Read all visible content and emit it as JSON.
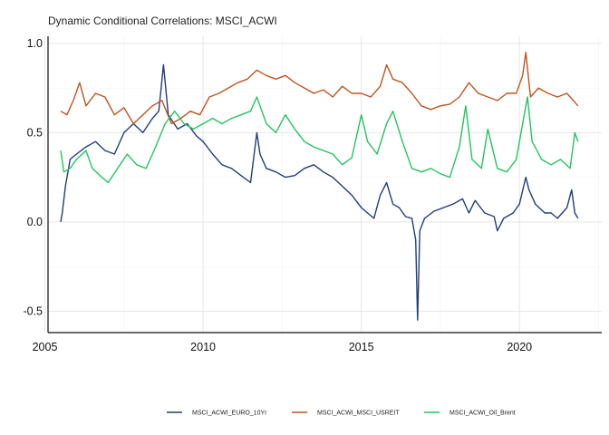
{
  "chart_data": {
    "type": "line",
    "title": "Dynamic Conditional Correlations: MSCI_ACWI",
    "xlabel": "",
    "ylabel": "",
    "xlim": [
      2005.1,
      2022.6
    ],
    "ylim": [
      -0.62,
      1.04
    ],
    "x_ticks": [
      2005,
      2010,
      2015,
      2020
    ],
    "x_tick_labels": [
      "2005",
      "2010",
      "2015",
      "2020"
    ],
    "y_ticks": [
      -0.5,
      0.0,
      0.5,
      1.0
    ],
    "y_tick_labels": [
      "-0.5",
      "0.0",
      "0.5",
      "1.0"
    ],
    "grid": true,
    "legend_position": "bottom",
    "series": [
      {
        "name": "MSCI_ACWI_EURO_10Yr",
        "color": "#1f3f7a",
        "points": [
          [
            2005.5,
            0.0
          ],
          [
            2005.55,
            0.05
          ],
          [
            2005.65,
            0.2
          ],
          [
            2005.8,
            0.35
          ],
          [
            2006.0,
            0.38
          ],
          [
            2006.3,
            0.42
          ],
          [
            2006.6,
            0.45
          ],
          [
            2006.9,
            0.4
          ],
          [
            2007.2,
            0.38
          ],
          [
            2007.5,
            0.5
          ],
          [
            2007.8,
            0.55
          ],
          [
            2008.1,
            0.5
          ],
          [
            2008.4,
            0.58
          ],
          [
            2008.6,
            0.62
          ],
          [
            2008.75,
            0.88
          ],
          [
            2008.9,
            0.6
          ],
          [
            2009.2,
            0.52
          ],
          [
            2009.5,
            0.55
          ],
          [
            2009.8,
            0.48
          ],
          [
            2010.0,
            0.45
          ],
          [
            2010.3,
            0.38
          ],
          [
            2010.6,
            0.32
          ],
          [
            2010.9,
            0.3
          ],
          [
            2011.2,
            0.26
          ],
          [
            2011.5,
            0.22
          ],
          [
            2011.7,
            0.5
          ],
          [
            2011.8,
            0.38
          ],
          [
            2012.0,
            0.3
          ],
          [
            2012.3,
            0.28
          ],
          [
            2012.6,
            0.25
          ],
          [
            2012.9,
            0.26
          ],
          [
            2013.2,
            0.3
          ],
          [
            2013.5,
            0.32
          ],
          [
            2013.8,
            0.28
          ],
          [
            2014.1,
            0.25
          ],
          [
            2014.4,
            0.2
          ],
          [
            2014.7,
            0.15
          ],
          [
            2015.0,
            0.08
          ],
          [
            2015.2,
            0.05
          ],
          [
            2015.4,
            0.02
          ],
          [
            2015.6,
            0.15
          ],
          [
            2015.8,
            0.22
          ],
          [
            2016.0,
            0.1
          ],
          [
            2016.2,
            0.08
          ],
          [
            2016.4,
            0.03
          ],
          [
            2016.6,
            0.02
          ],
          [
            2016.72,
            -0.1
          ],
          [
            2016.78,
            -0.55
          ],
          [
            2016.85,
            -0.05
          ],
          [
            2017.0,
            0.02
          ],
          [
            2017.3,
            0.06
          ],
          [
            2017.6,
            0.08
          ],
          [
            2017.9,
            0.1
          ],
          [
            2018.2,
            0.13
          ],
          [
            2018.4,
            0.05
          ],
          [
            2018.6,
            0.12
          ],
          [
            2018.9,
            0.05
          ],
          [
            2019.2,
            0.03
          ],
          [
            2019.3,
            -0.05
          ],
          [
            2019.5,
            0.02
          ],
          [
            2019.8,
            0.05
          ],
          [
            2020.0,
            0.1
          ],
          [
            2020.2,
            0.25
          ],
          [
            2020.3,
            0.18
          ],
          [
            2020.5,
            0.1
          ],
          [
            2020.8,
            0.05
          ],
          [
            2021.0,
            0.05
          ],
          [
            2021.2,
            0.02
          ],
          [
            2021.5,
            0.08
          ],
          [
            2021.65,
            0.18
          ],
          [
            2021.75,
            0.05
          ],
          [
            2021.85,
            0.02
          ]
        ]
      },
      {
        "name": "MSCI_ACWI_MSCI_USREIT",
        "color": "#c0541f",
        "points": [
          [
            2005.5,
            0.62
          ],
          [
            2005.7,
            0.6
          ],
          [
            2005.9,
            0.68
          ],
          [
            2006.1,
            0.78
          ],
          [
            2006.3,
            0.65
          ],
          [
            2006.6,
            0.72
          ],
          [
            2006.9,
            0.7
          ],
          [
            2007.2,
            0.6
          ],
          [
            2007.5,
            0.64
          ],
          [
            2007.8,
            0.55
          ],
          [
            2008.1,
            0.6
          ],
          [
            2008.4,
            0.65
          ],
          [
            2008.7,
            0.68
          ],
          [
            2009.0,
            0.55
          ],
          [
            2009.3,
            0.58
          ],
          [
            2009.6,
            0.62
          ],
          [
            2009.9,
            0.6
          ],
          [
            2010.2,
            0.7
          ],
          [
            2010.5,
            0.72
          ],
          [
            2010.8,
            0.75
          ],
          [
            2011.1,
            0.78
          ],
          [
            2011.4,
            0.8
          ],
          [
            2011.7,
            0.85
          ],
          [
            2012.0,
            0.82
          ],
          [
            2012.3,
            0.8
          ],
          [
            2012.6,
            0.82
          ],
          [
            2012.9,
            0.78
          ],
          [
            2013.2,
            0.75
          ],
          [
            2013.5,
            0.72
          ],
          [
            2013.8,
            0.74
          ],
          [
            2014.1,
            0.7
          ],
          [
            2014.4,
            0.76
          ],
          [
            2014.7,
            0.72
          ],
          [
            2015.0,
            0.72
          ],
          [
            2015.3,
            0.7
          ],
          [
            2015.6,
            0.76
          ],
          [
            2015.8,
            0.88
          ],
          [
            2016.0,
            0.8
          ],
          [
            2016.3,
            0.78
          ],
          [
            2016.6,
            0.72
          ],
          [
            2016.9,
            0.65
          ],
          [
            2017.2,
            0.63
          ],
          [
            2017.5,
            0.65
          ],
          [
            2017.8,
            0.66
          ],
          [
            2018.1,
            0.7
          ],
          [
            2018.4,
            0.78
          ],
          [
            2018.7,
            0.72
          ],
          [
            2019.0,
            0.7
          ],
          [
            2019.3,
            0.68
          ],
          [
            2019.6,
            0.72
          ],
          [
            2019.9,
            0.72
          ],
          [
            2020.1,
            0.82
          ],
          [
            2020.2,
            0.95
          ],
          [
            2020.35,
            0.7
          ],
          [
            2020.6,
            0.75
          ],
          [
            2020.9,
            0.72
          ],
          [
            2021.2,
            0.7
          ],
          [
            2021.5,
            0.72
          ],
          [
            2021.7,
            0.68
          ],
          [
            2021.85,
            0.65
          ]
        ]
      },
      {
        "name": "MSCI_ACWI_Oil_Brent",
        "color": "#22c55e",
        "points": [
          [
            2005.5,
            0.4
          ],
          [
            2005.6,
            0.28
          ],
          [
            2005.8,
            0.3
          ],
          [
            2006.0,
            0.35
          ],
          [
            2006.3,
            0.4
          ],
          [
            2006.5,
            0.3
          ],
          [
            2006.8,
            0.25
          ],
          [
            2007.0,
            0.22
          ],
          [
            2007.3,
            0.3
          ],
          [
            2007.6,
            0.38
          ],
          [
            2007.9,
            0.32
          ],
          [
            2008.2,
            0.3
          ],
          [
            2008.5,
            0.42
          ],
          [
            2008.8,
            0.55
          ],
          [
            2009.1,
            0.62
          ],
          [
            2009.4,
            0.55
          ],
          [
            2009.7,
            0.52
          ],
          [
            2010.0,
            0.55
          ],
          [
            2010.3,
            0.58
          ],
          [
            2010.6,
            0.55
          ],
          [
            2010.9,
            0.58
          ],
          [
            2011.2,
            0.6
          ],
          [
            2011.5,
            0.62
          ],
          [
            2011.7,
            0.7
          ],
          [
            2012.0,
            0.55
          ],
          [
            2012.3,
            0.5
          ],
          [
            2012.6,
            0.6
          ],
          [
            2012.9,
            0.52
          ],
          [
            2013.2,
            0.45
          ],
          [
            2013.5,
            0.42
          ],
          [
            2013.8,
            0.4
          ],
          [
            2014.1,
            0.38
          ],
          [
            2014.4,
            0.32
          ],
          [
            2014.7,
            0.36
          ],
          [
            2015.0,
            0.6
          ],
          [
            2015.2,
            0.45
          ],
          [
            2015.5,
            0.38
          ],
          [
            2015.8,
            0.55
          ],
          [
            2016.0,
            0.62
          ],
          [
            2016.3,
            0.45
          ],
          [
            2016.6,
            0.3
          ],
          [
            2016.9,
            0.28
          ],
          [
            2017.2,
            0.3
          ],
          [
            2017.5,
            0.27
          ],
          [
            2017.8,
            0.25
          ],
          [
            2018.1,
            0.42
          ],
          [
            2018.3,
            0.65
          ],
          [
            2018.5,
            0.35
          ],
          [
            2018.8,
            0.3
          ],
          [
            2019.0,
            0.52
          ],
          [
            2019.3,
            0.3
          ],
          [
            2019.6,
            0.28
          ],
          [
            2019.9,
            0.35
          ],
          [
            2020.1,
            0.55
          ],
          [
            2020.25,
            0.7
          ],
          [
            2020.4,
            0.45
          ],
          [
            2020.7,
            0.35
          ],
          [
            2021.0,
            0.32
          ],
          [
            2021.3,
            0.35
          ],
          [
            2021.6,
            0.3
          ],
          [
            2021.75,
            0.5
          ],
          [
            2021.85,
            0.45
          ]
        ]
      }
    ]
  }
}
